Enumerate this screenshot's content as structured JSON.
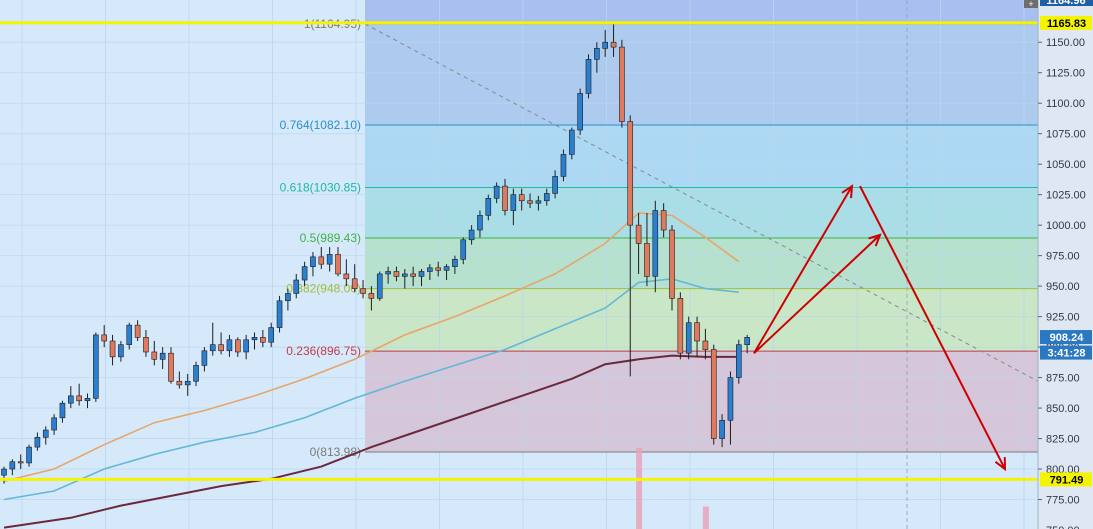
{
  "chart_data": {
    "type": "candlestick",
    "y_axis": {
      "ticks": [
        "1150.00",
        "1125.00",
        "1100.00",
        "1075.00",
        "1050.00",
        "1025.00",
        "1000.00",
        "975.00",
        "950.00",
        "925.00",
        "900.00",
        "875.00",
        "850.00",
        "825.00",
        "800.00",
        "775.00",
        "750.00"
      ],
      "range": [
        744,
        1180
      ],
      "tick_values": [
        1150,
        1125,
        1100,
        1075,
        1050,
        1025,
        1000,
        975,
        950,
        925,
        900,
        875,
        850,
        825,
        800,
        775,
        750
      ]
    },
    "fibonacci_levels": [
      {
        "label": "1(1164.95)",
        "value": 1164.95,
        "color": "#7a7a7a"
      },
      {
        "label": "0.764(1082.10)",
        "value": 1082.1,
        "color": "#2b8fc9"
      },
      {
        "label": "0.618(1030.85)",
        "value": 1030.85,
        "color": "#21b8a0"
      },
      {
        "label": "0.5(989.43)",
        "value": 989.43,
        "color": "#3fb24a"
      },
      {
        "label": "0.382(948.00)",
        "value": 948.0,
        "color": "#9fbf3a"
      },
      {
        "label": "0.236(896.75)",
        "value": 896.75,
        "color": "#c23b4b"
      },
      {
        "label": "0(813.98)",
        "value": 813.98,
        "color": "#7a7a7a"
      }
    ],
    "horizontal_lines": [
      {
        "value": 1165.83,
        "color": "#f4f400"
      },
      {
        "value": 791.49,
        "color": "#f4f400"
      }
    ],
    "price_tags": [
      {
        "label": "1165.83",
        "value": 1165.83,
        "bg": "#f4f400",
        "fg": "#000000"
      },
      {
        "label": "908.24",
        "value": 908.24,
        "bg": "#2b78c2",
        "fg": "#ffffff"
      },
      {
        "label": "3:41:28",
        "value": 895.5,
        "bg": "#2b78c2",
        "fg": "#ffffff"
      },
      {
        "label": "791.49",
        "value": 791.49,
        "bg": "#f4f400",
        "fg": "#000000"
      }
    ],
    "top_partial_tag": "1164.96",
    "candles": [
      [
        795,
        802,
        788,
        800
      ],
      [
        800,
        808,
        795,
        806
      ],
      [
        806,
        812,
        800,
        805
      ],
      [
        805,
        820,
        802,
        818
      ],
      [
        818,
        830,
        815,
        826
      ],
      [
        826,
        835,
        820,
        832
      ],
      [
        832,
        845,
        828,
        842
      ],
      [
        842,
        856,
        838,
        854
      ],
      [
        854,
        868,
        850,
        860
      ],
      [
        860,
        870,
        852,
        856
      ],
      [
        856,
        862,
        850,
        858
      ],
      [
        858,
        912,
        855,
        910
      ],
      [
        910,
        918,
        900,
        905
      ],
      [
        905,
        910,
        885,
        892
      ],
      [
        892,
        905,
        888,
        902
      ],
      [
        902,
        920,
        898,
        918
      ],
      [
        918,
        922,
        905,
        908
      ],
      [
        908,
        914,
        892,
        896
      ],
      [
        896,
        905,
        885,
        890
      ],
      [
        890,
        900,
        882,
        895
      ],
      [
        895,
        900,
        870,
        872
      ],
      [
        872,
        880,
        866,
        869
      ],
      [
        869,
        878,
        860,
        872
      ],
      [
        872,
        888,
        868,
        885
      ],
      [
        885,
        900,
        880,
        897
      ],
      [
        897,
        920,
        893,
        902
      ],
      [
        902,
        912,
        894,
        897
      ],
      [
        897,
        910,
        892,
        906
      ],
      [
        906,
        908,
        892,
        896
      ],
      [
        896,
        910,
        890,
        906
      ],
      [
        906,
        912,
        898,
        908
      ],
      [
        908,
        914,
        900,
        904
      ],
      [
        904,
        920,
        900,
        916
      ],
      [
        916,
        942,
        912,
        938
      ],
      [
        938,
        948,
        930,
        944
      ],
      [
        944,
        960,
        940,
        955
      ],
      [
        955,
        970,
        950,
        966
      ],
      [
        966,
        978,
        958,
        974
      ],
      [
        974,
        982,
        964,
        968
      ],
      [
        968,
        982,
        962,
        976
      ],
      [
        976,
        982,
        958,
        960
      ],
      [
        960,
        972,
        950,
        956
      ],
      [
        956,
        968,
        945,
        948
      ],
      [
        948,
        955,
        940,
        944
      ],
      [
        944,
        950,
        930,
        940
      ],
      [
        940,
        962,
        938,
        960
      ],
      [
        960,
        966,
        952,
        962
      ],
      [
        962,
        966,
        954,
        958
      ],
      [
        958,
        964,
        948,
        960
      ],
      [
        960,
        966,
        950,
        958
      ],
      [
        958,
        964,
        950,
        962
      ],
      [
        962,
        968,
        955,
        965
      ],
      [
        965,
        970,
        958,
        963
      ],
      [
        963,
        968,
        955,
        966
      ],
      [
        966,
        975,
        960,
        972
      ],
      [
        972,
        990,
        968,
        988
      ],
      [
        988,
        1000,
        984,
        996
      ],
      [
        996,
        1012,
        990,
        1008
      ],
      [
        1008,
        1025,
        1004,
        1022
      ],
      [
        1022,
        1035,
        1018,
        1032
      ],
      [
        1032,
        1038,
        1008,
        1012
      ],
      [
        1012,
        1030,
        1000,
        1025
      ],
      [
        1025,
        1030,
        1012,
        1020
      ],
      [
        1020,
        1026,
        1014,
        1018
      ],
      [
        1018,
        1024,
        1012,
        1020
      ],
      [
        1020,
        1030,
        1016,
        1026
      ],
      [
        1026,
        1045,
        1022,
        1040
      ],
      [
        1040,
        1062,
        1036,
        1058
      ],
      [
        1058,
        1080,
        1054,
        1078
      ],
      [
        1078,
        1112,
        1074,
        1108
      ],
      [
        1108,
        1140,
        1104,
        1136
      ],
      [
        1136,
        1150,
        1125,
        1145
      ],
      [
        1145,
        1160,
        1138,
        1150
      ],
      [
        1150,
        1165,
        1138,
        1146
      ],
      [
        1146,
        1152,
        1080,
        1085
      ],
      [
        1085,
        1090,
        876,
        1000
      ],
      [
        1000,
        1010,
        960,
        985
      ],
      [
        985,
        1010,
        950,
        958
      ],
      [
        958,
        1020,
        945,
        1012
      ],
      [
        1012,
        1018,
        990,
        996
      ],
      [
        996,
        1000,
        930,
        940
      ],
      [
        940,
        945,
        890,
        895
      ],
      [
        895,
        925,
        890,
        920
      ],
      [
        920,
        925,
        892,
        905
      ],
      [
        905,
        915,
        890,
        898
      ],
      [
        898,
        902,
        820,
        825
      ],
      [
        825,
        845,
        818,
        840
      ],
      [
        840,
        880,
        820,
        875
      ],
      [
        875,
        906,
        870,
        902
      ],
      [
        902,
        910,
        895,
        908
      ]
    ],
    "moving_averages": [
      {
        "color": "#e8a56a",
        "values": [
          [
            0,
            790
          ],
          [
            6,
            800
          ],
          [
            12,
            820
          ],
          [
            18,
            838
          ],
          [
            24,
            848
          ],
          [
            30,
            860
          ],
          [
            36,
            874
          ],
          [
            42,
            890
          ],
          [
            48,
            910
          ],
          [
            54,
            925
          ],
          [
            60,
            942
          ],
          [
            66,
            960
          ],
          [
            72,
            985
          ],
          [
            76,
            1010
          ],
          [
            80,
            1008
          ],
          [
            84,
            990
          ],
          [
            88,
            970
          ]
        ]
      },
      {
        "color": "#62b8d8",
        "values": [
          [
            0,
            775
          ],
          [
            6,
            782
          ],
          [
            12,
            800
          ],
          [
            18,
            812
          ],
          [
            24,
            822
          ],
          [
            30,
            830
          ],
          [
            36,
            842
          ],
          [
            42,
            858
          ],
          [
            48,
            872
          ],
          [
            54,
            885
          ],
          [
            60,
            898
          ],
          [
            66,
            915
          ],
          [
            72,
            932
          ],
          [
            76,
            953
          ],
          [
            80,
            956
          ],
          [
            84,
            948
          ],
          [
            88,
            945
          ]
        ]
      },
      {
        "color": "#6b2a3c",
        "values": [
          [
            0,
            752
          ],
          [
            8,
            760
          ],
          [
            14,
            770
          ],
          [
            20,
            778
          ],
          [
            26,
            786
          ],
          [
            32,
            792
          ],
          [
            38,
            802
          ],
          [
            44,
            818
          ],
          [
            50,
            832
          ],
          [
            56,
            846
          ],
          [
            62,
            860
          ],
          [
            68,
            874
          ],
          [
            72,
            886
          ],
          [
            76,
            890
          ],
          [
            80,
            893
          ],
          [
            84,
            892
          ],
          [
            88,
            892
          ]
        ]
      }
    ],
    "volume_bars": [
      {
        "index": 76,
        "value": 0.9
      },
      {
        "index": 84,
        "value": 0.25
      }
    ],
    "annotation_arrows": [
      {
        "from": [
          754,
          895
        ],
        "to": [
          852,
          1032
        ],
        "color": "#cc0000"
      },
      {
        "from": [
          754,
          895
        ],
        "to": [
          880,
          992
        ],
        "color": "#cc0000"
      },
      {
        "from": [
          860,
          1032
        ],
        "to": [
          1005,
          800
        ],
        "color": "#cc0000"
      }
    ],
    "trend_line": {
      "from": [
        365,
        1164.95
      ],
      "to": [
        1038,
        872
      ],
      "color": "#888888",
      "dashed": true
    }
  }
}
